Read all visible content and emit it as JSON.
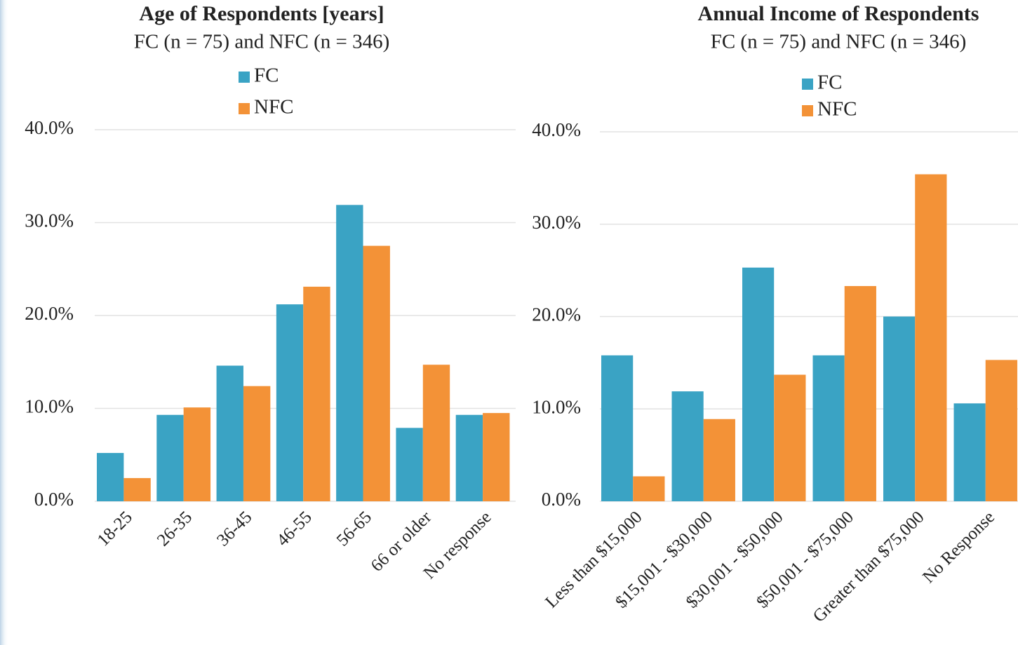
{
  "chart_data": [
    {
      "type": "bar",
      "title": "Age of Respondents [years]",
      "subtitle": "FC (n = 75) and NFC (n = 346)",
      "categories": [
        "18-25",
        "26-35",
        "36-45",
        "46-55",
        "56-65",
        "66 or older",
        "No response"
      ],
      "series": [
        {
          "name": "FC",
          "color": "#3aa3c4",
          "values": [
            5.2,
            9.3,
            14.6,
            21.2,
            31.9,
            7.9,
            9.3
          ]
        },
        {
          "name": "NFC",
          "color": "#f39237",
          "values": [
            2.5,
            10.1,
            12.4,
            23.1,
            27.5,
            14.7,
            9.5
          ]
        }
      ],
      "ylim": [
        0,
        40
      ],
      "yticks": [
        {
          "value": 0,
          "label": "0.0%"
        },
        {
          "value": 10,
          "label": "10.0%"
        },
        {
          "value": 20,
          "label": "20.0%"
        },
        {
          "value": 30,
          "label": "30.0%"
        },
        {
          "value": 40,
          "label": "40.0%"
        }
      ],
      "grid": true,
      "legend": "top"
    },
    {
      "type": "bar",
      "title": "Annual Income of Respondents",
      "subtitle": "FC (n = 75) and NFC (n = 346)",
      "categories": [
        "Less than $15,000",
        "$15,001 - $30,000",
        "$30,001 - $50,000",
        "$50,001 - $75,000",
        "Greater than $75,000",
        "No Response"
      ],
      "series": [
        {
          "name": "FC",
          "color": "#3aa3c4",
          "values": [
            15.8,
            11.9,
            25.3,
            15.8,
            20.0,
            10.6
          ]
        },
        {
          "name": "NFC",
          "color": "#f39237",
          "values": [
            2.7,
            8.9,
            13.7,
            23.3,
            35.4,
            15.3
          ]
        }
      ],
      "ylim": [
        0,
        40
      ],
      "yticks": [
        {
          "value": 0,
          "label": "0.0%"
        },
        {
          "value": 10,
          "label": "10.0%"
        },
        {
          "value": 20,
          "label": "20.0%"
        },
        {
          "value": 30,
          "label": "30.0%"
        },
        {
          "value": 40,
          "label": "40.0%"
        }
      ],
      "grid": true,
      "legend": "top"
    }
  ]
}
